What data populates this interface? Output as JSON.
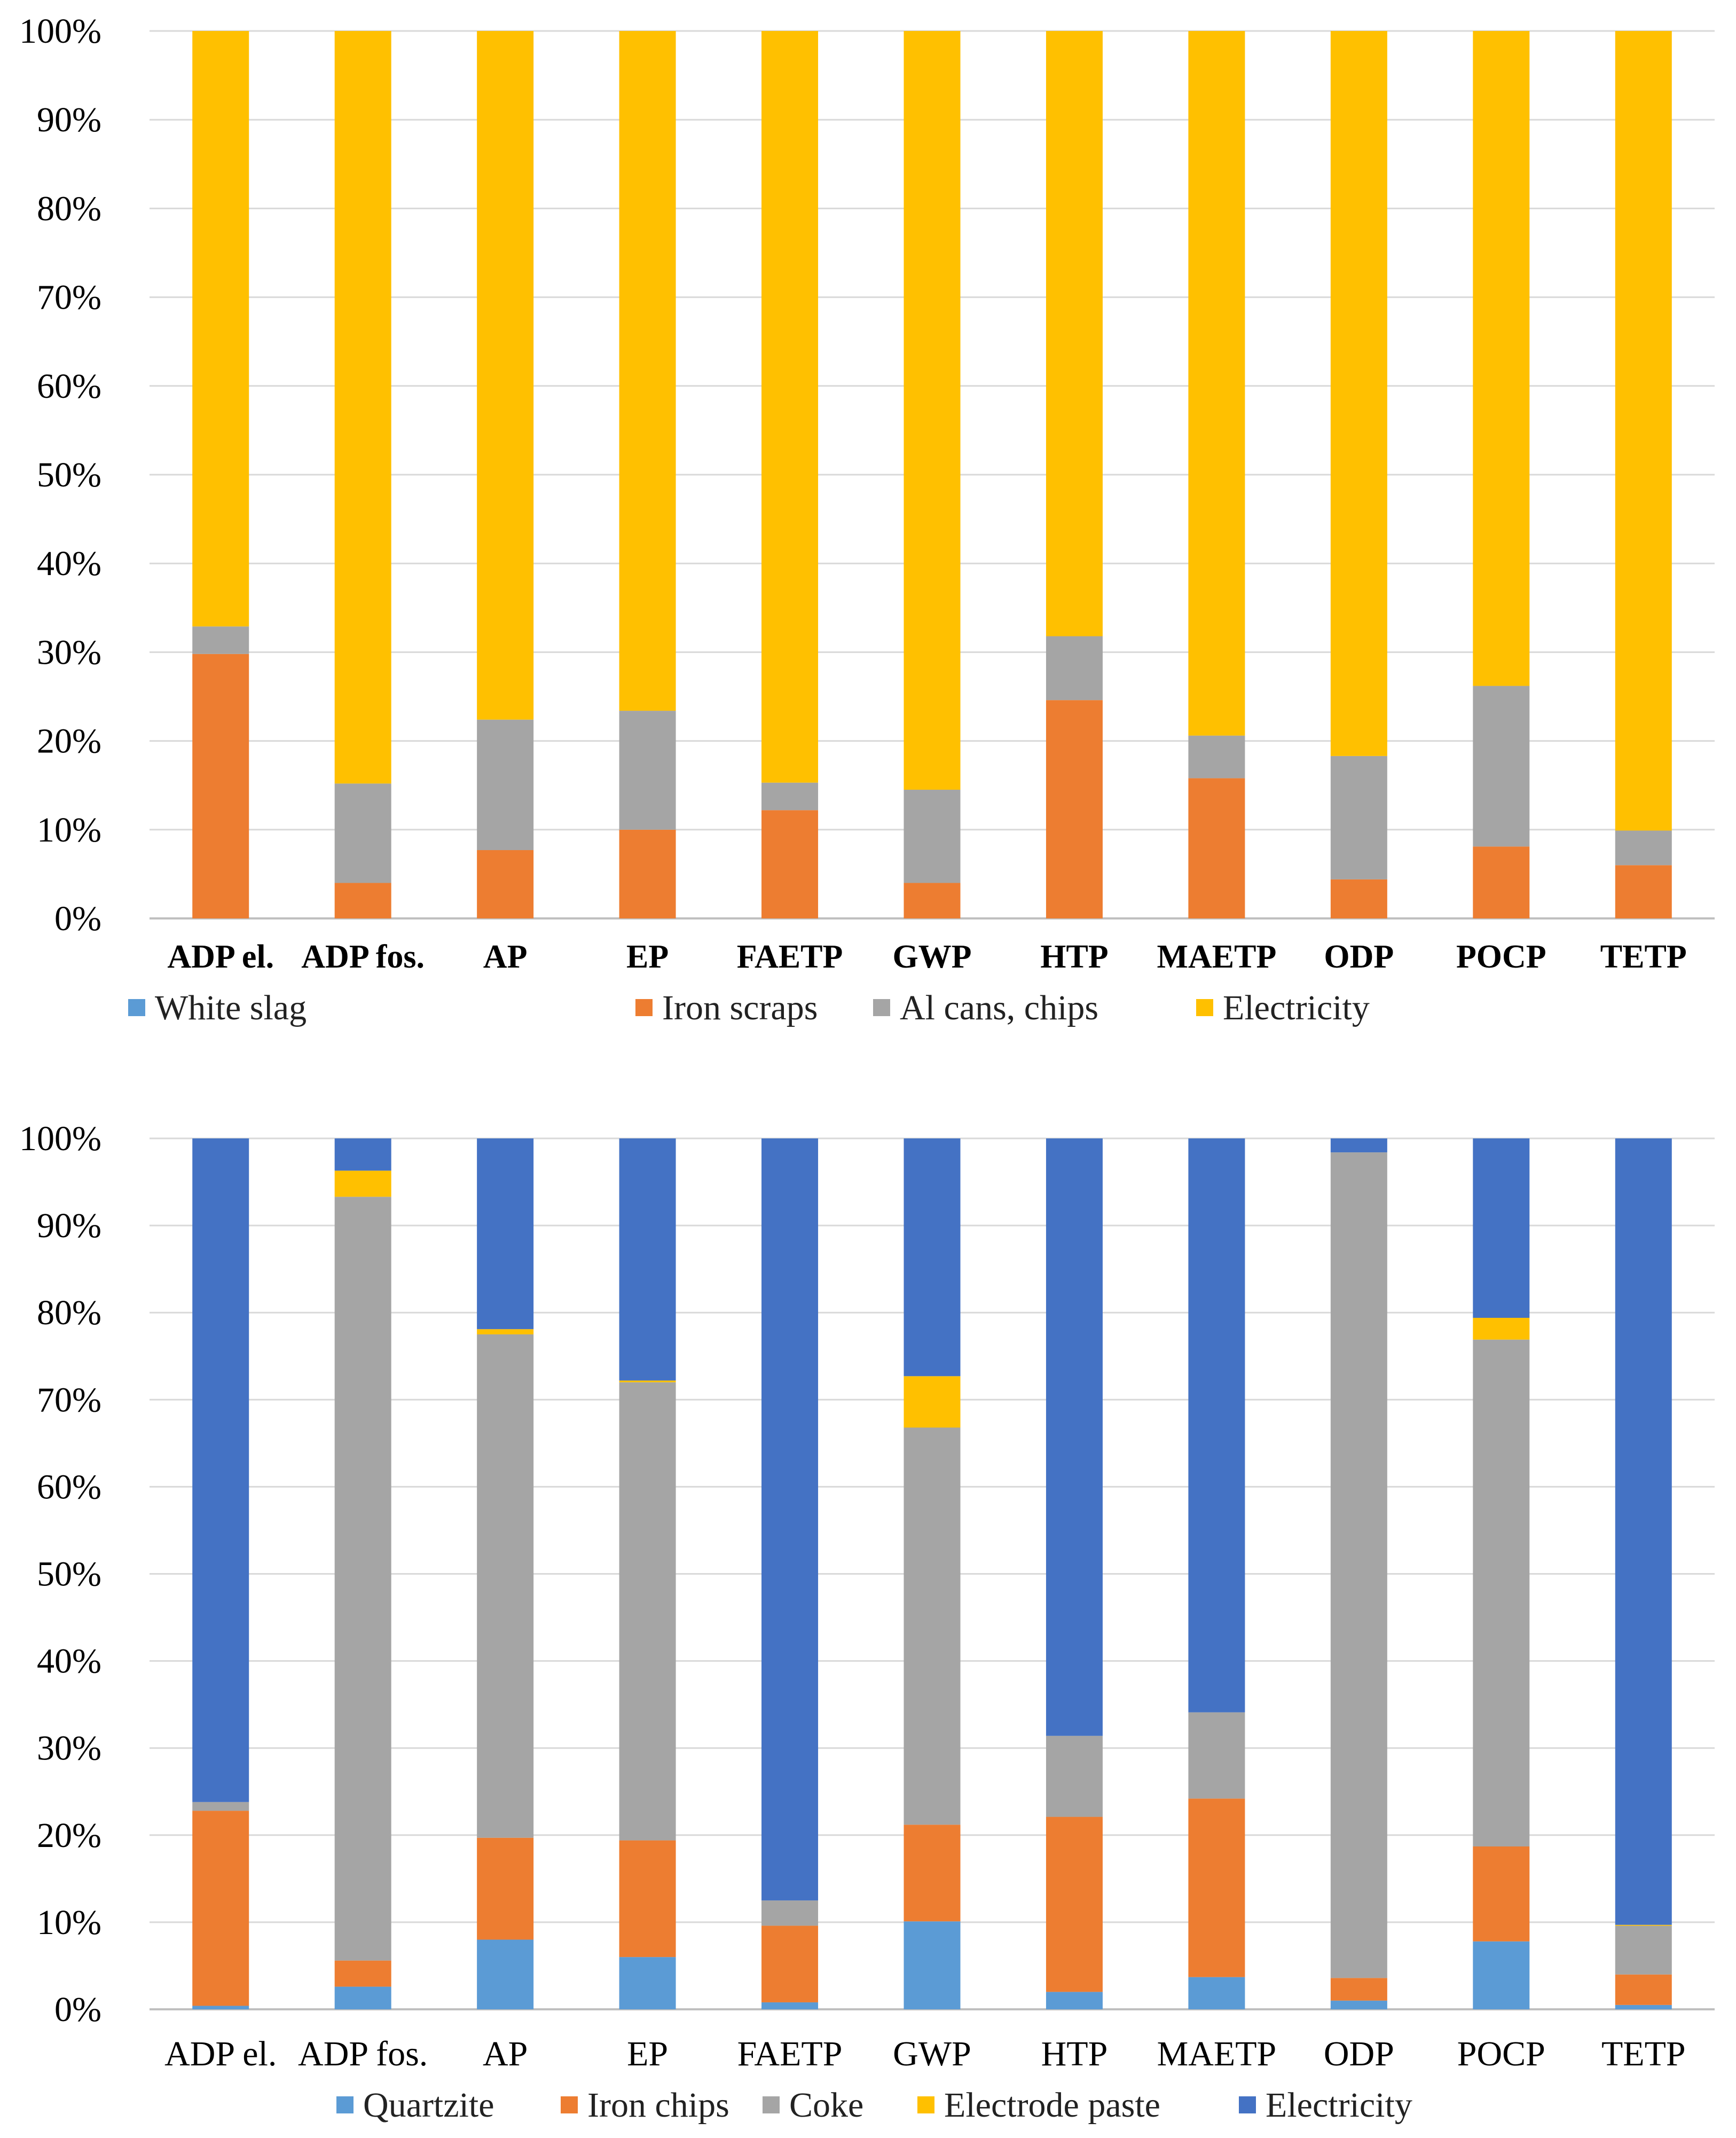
{
  "chart_data": [
    {
      "type": "bar",
      "stacked": true,
      "normalized": true,
      "title": "",
      "xlabel": "",
      "ylabel": "",
      "ylim": [
        0,
        100
      ],
      "yticks": [
        "0%",
        "10%",
        "20%",
        "30%",
        "40%",
        "50%",
        "60%",
        "70%",
        "80%",
        "90%",
        "100%"
      ],
      "categories": [
        "ADP el.",
        "ADP fos.",
        "AP",
        "EP",
        "FAETP",
        "GWP",
        "HTP",
        "MAETP",
        "ODP",
        "POCP",
        "TETP"
      ],
      "legend_position": "bottom",
      "series": [
        {
          "name": "White slag",
          "color": "#5b9bd5",
          "values": [
            0,
            0,
            0,
            0,
            0,
            0,
            0,
            0,
            0,
            0,
            0
          ]
        },
        {
          "name": "Iron scraps",
          "color": "#ed7d31",
          "values": [
            29.8,
            4,
            7.7,
            10,
            12.2,
            4,
            24.6,
            15.8,
            4.4,
            8.1,
            6
          ]
        },
        {
          "name": "Al cans, chips",
          "color": "#a5a5a5",
          "values": [
            3.1,
            11.2,
            14.7,
            13.4,
            3.1,
            10.5,
            7.2,
            4.8,
            13.9,
            18.1,
            3.9
          ]
        },
        {
          "name": "Electricity",
          "color": "#ffc000",
          "values": [
            67.1,
            84.8,
            77.6,
            76.6,
            84.7,
            85.5,
            68.2,
            79.4,
            81.7,
            73.8,
            90.1
          ]
        }
      ]
    },
    {
      "type": "bar",
      "stacked": true,
      "normalized": true,
      "title": "",
      "xlabel": "",
      "ylabel": "",
      "ylim": [
        0,
        100
      ],
      "yticks": [
        "0%",
        "10%",
        "20%",
        "30%",
        "40%",
        "50%",
        "60%",
        "70%",
        "80%",
        "90%",
        "100%"
      ],
      "categories": [
        "ADP el.",
        "ADP fos.",
        "AP",
        "EP",
        "FAETP",
        "GWP",
        "HTP",
        "MAETP",
        "ODP",
        "POCP",
        "TETP"
      ],
      "legend_position": "bottom",
      "series": [
        {
          "name": "Quartzite",
          "color": "#5b9bd5",
          "values": [
            0.4,
            2.6,
            8,
            6,
            0.8,
            10.1,
            2,
            3.7,
            1,
            7.8,
            0.5
          ]
        },
        {
          "name": "Iron chips",
          "color": "#ed7d31",
          "values": [
            22.4,
            3,
            11.7,
            13.4,
            8.8,
            11.1,
            20.1,
            20.5,
            2.6,
            10.9,
            3.5
          ]
        },
        {
          "name": "Coke",
          "color": "#a5a5a5",
          "values": [
            1,
            87.7,
            57.8,
            52.6,
            2.9,
            45.6,
            9.3,
            9.9,
            94.8,
            58.2,
            5.6
          ]
        },
        {
          "name": "Electrode paste",
          "color": "#ffc000",
          "values": [
            0,
            3,
            0.6,
            0.2,
            0,
            5.9,
            0,
            0,
            0,
            2.5,
            0.1
          ]
        },
        {
          "name": "Electricity",
          "color": "#4472c4",
          "values": [
            76.2,
            3.7,
            21.9,
            27.8,
            87.5,
            27.3,
            68.6,
            65.9,
            1.6,
            20.6,
            90.3
          ]
        }
      ]
    }
  ]
}
